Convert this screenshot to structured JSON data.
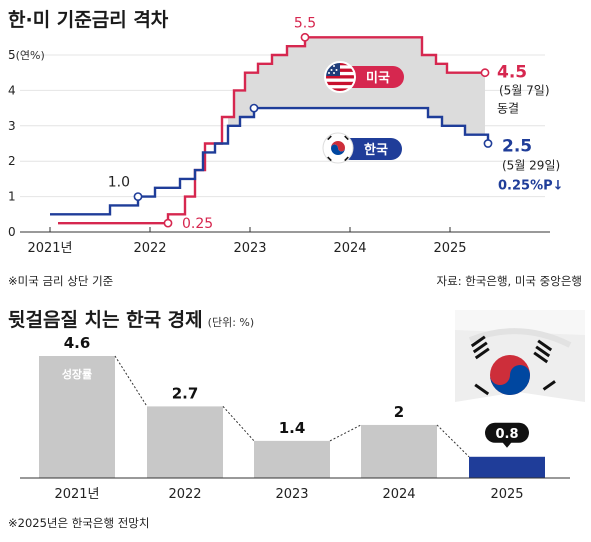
{
  "chart_data": [
    {
      "type": "line",
      "title": "한·미 기준금리 격차",
      "unit_label": "(연%)",
      "y_ticks": [
        "0",
        "1",
        "2",
        "3",
        "4",
        "5"
      ],
      "ylim": [
        0,
        5.6
      ],
      "x_ticks": [
        "2021년",
        "2022",
        "2023",
        "2024",
        "2025"
      ],
      "xlim": [
        2021.0,
        2025.95
      ],
      "series": [
        {
          "name": "미국",
          "color": "#d6274f",
          "points": [
            [
              2021.08,
              0.25
            ],
            [
              2022.18,
              0.25
            ],
            [
              2022.18,
              0.5
            ],
            [
              2022.35,
              0.5
            ],
            [
              2022.35,
              1.0
            ],
            [
              2022.45,
              1.0
            ],
            [
              2022.45,
              1.75
            ],
            [
              2022.55,
              1.75
            ],
            [
              2022.55,
              2.5
            ],
            [
              2022.72,
              2.5
            ],
            [
              2022.72,
              3.25
            ],
            [
              2022.84,
              3.25
            ],
            [
              2022.84,
              4.0
            ],
            [
              2022.95,
              4.0
            ],
            [
              2022.95,
              4.5
            ],
            [
              2023.08,
              4.5
            ],
            [
              2023.08,
              4.75
            ],
            [
              2023.22,
              4.75
            ],
            [
              2023.22,
              5.0
            ],
            [
              2023.37,
              5.0
            ],
            [
              2023.37,
              5.25
            ],
            [
              2023.55,
              5.25
            ],
            [
              2023.55,
              5.5
            ],
            [
              2024.72,
              5.5
            ],
            [
              2024.72,
              5.0
            ],
            [
              2024.86,
              5.0
            ],
            [
              2024.86,
              4.75
            ],
            [
              2024.97,
              4.75
            ],
            [
              2024.97,
              4.5
            ],
            [
              2025.35,
              4.5
            ]
          ]
        },
        {
          "name": "한국",
          "color": "#1f3d99",
          "points": [
            [
              2021.0,
              0.5
            ],
            [
              2021.6,
              0.5
            ],
            [
              2021.6,
              0.75
            ],
            [
              2021.88,
              0.75
            ],
            [
              2021.88,
              1.0
            ],
            [
              2022.05,
              1.0
            ],
            [
              2022.05,
              1.25
            ],
            [
              2022.3,
              1.25
            ],
            [
              2022.3,
              1.5
            ],
            [
              2022.45,
              1.5
            ],
            [
              2022.45,
              1.75
            ],
            [
              2022.53,
              1.75
            ],
            [
              2022.53,
              2.25
            ],
            [
              2022.65,
              2.25
            ],
            [
              2022.65,
              2.5
            ],
            [
              2022.78,
              2.5
            ],
            [
              2022.78,
              3.0
            ],
            [
              2022.9,
              3.0
            ],
            [
              2022.9,
              3.25
            ],
            [
              2023.04,
              3.25
            ],
            [
              2023.04,
              3.5
            ],
            [
              2024.78,
              3.5
            ],
            [
              2024.78,
              3.25
            ],
            [
              2024.92,
              3.25
            ],
            [
              2024.92,
              3.0
            ],
            [
              2025.15,
              3.0
            ],
            [
              2025.15,
              2.75
            ],
            [
              2025.38,
              2.75
            ],
            [
              2025.38,
              2.5
            ]
          ]
        }
      ],
      "annotations": {
        "us_peak": "5.5",
        "us_low": "0.25",
        "kr_early": "1.0",
        "us_end_value": "4.5",
        "us_end_date": "(5월 7일)",
        "us_end_note": "동결",
        "kr_end_value": "2.5",
        "kr_end_date": "(5월 29일)",
        "gap_note": "0.25%P↓",
        "us_flag_label": "미국",
        "kr_flag_label": "한국"
      },
      "footnote": "※미국 금리 상단 기준",
      "source": "자료: 한국은행, 미국 중앙은행"
    },
    {
      "type": "bar",
      "title": "뒷걸음질 치는 한국 경제",
      "unit_label": "(단위: %)",
      "categories": [
        "2021년",
        "2022",
        "2023",
        "2024",
        "2025"
      ],
      "values": [
        4.6,
        2.7,
        1.4,
        2,
        0.8
      ],
      "value_labels": [
        "4.6",
        "2.7",
        "1.4",
        "2",
        "0.8"
      ],
      "series_label": "성장률",
      "ylim": [
        0,
        5
      ],
      "colors": {
        "default": "#c8c8c8",
        "highlight": "#1f3d99"
      },
      "footnote": "※2025년은 한국은행 전망치"
    }
  ]
}
